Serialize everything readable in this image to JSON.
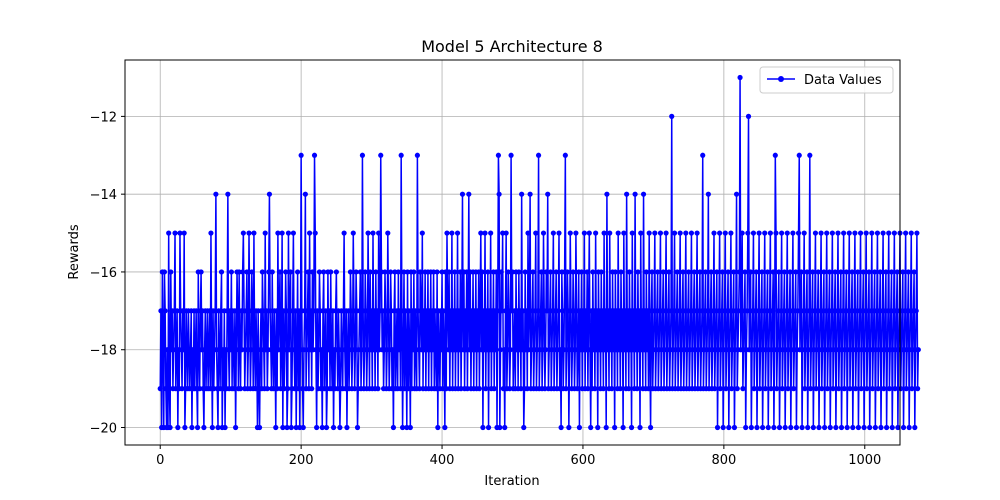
{
  "chart_data": {
    "type": "line",
    "title": "Model 5 Architecture 8",
    "xlabel": "Iteration",
    "ylabel": "Rewards",
    "xlim": [
      -50,
      1050
    ],
    "ylim": [
      -20.45,
      -10.55
    ],
    "xticks": [
      0,
      200,
      400,
      600,
      800,
      1000
    ],
    "xtick_labels": [
      "0",
      "200",
      "400",
      "600",
      "800",
      "1000"
    ],
    "yticks": [
      -20,
      -18,
      -16,
      -14,
      -12
    ],
    "ytick_labels": [
      "−20",
      "−18",
      "−16",
      "−14",
      "−12"
    ],
    "grid": true,
    "legend_position": "top-right",
    "series": [
      {
        "name": "Data Values",
        "color": "#0000ff",
        "marker": "circle",
        "x_start": 0,
        "x_step": 1,
        "values": [
          -19,
          -17,
          -20,
          -16,
          -18,
          -20,
          -16,
          -17,
          -19,
          -20,
          -18,
          -20,
          -15,
          -19,
          -20,
          -16,
          -18,
          -17,
          -19,
          -18,
          -17,
          -15,
          -19,
          -18,
          -17,
          -20,
          -18,
          -19,
          -15,
          -17,
          -18,
          -19,
          -17,
          -18,
          -15,
          -20,
          -19,
          -17,
          -18,
          -19,
          -17,
          -18,
          -19,
          -18,
          -17,
          -20,
          -18,
          -19,
          -17,
          -19,
          -18,
          -17,
          -19,
          -20,
          -16,
          -18,
          -19,
          -17,
          -16,
          -18,
          -17,
          -19,
          -20,
          -18,
          -17,
          -19,
          -18,
          -17,
          -19,
          -18,
          -17,
          -19,
          -15,
          -18,
          -20,
          -17,
          -19,
          -18,
          -17,
          -14,
          -18,
          -19,
          -20,
          -17,
          -18,
          -19,
          -17,
          -16,
          -20,
          -18,
          -19,
          -17,
          -20,
          -18,
          -19,
          -17,
          -14,
          -18,
          -19,
          -17,
          -18,
          -16,
          -19,
          -17,
          -18,
          -19,
          -17,
          -20,
          -18,
          -16,
          -17,
          -19,
          -16,
          -18,
          -19,
          -17,
          -18,
          -16,
          -15,
          -17,
          -19,
          -18,
          -17,
          -16,
          -19,
          -18,
          -15,
          -17,
          -19,
          -18,
          -16,
          -17,
          -19,
          -15,
          -18,
          -19,
          -17,
          -18,
          -20,
          -17,
          -19,
          -20,
          -18,
          -17,
          -19,
          -16,
          -17,
          -18,
          -19,
          -15,
          -18,
          -17,
          -19,
          -18,
          -16,
          -14,
          -17,
          -18,
          -19,
          -16,
          -18,
          -19,
          -17,
          -18,
          -20,
          -17,
          -19,
          -15,
          -18,
          -17,
          -16,
          -19,
          -18,
          -15,
          -20,
          -17,
          -19,
          -18,
          -16,
          -17,
          -20,
          -19,
          -15,
          -18,
          -17,
          -16,
          -20,
          -19,
          -17,
          -15,
          -18,
          -19,
          -17,
          -20,
          -18,
          -16,
          -19,
          -17,
          -20,
          -18,
          -13,
          -17,
          -19,
          -20,
          -18,
          -17,
          -14,
          -19,
          -18,
          -17,
          -16,
          -19,
          -15,
          -18,
          -17,
          -19,
          -16,
          -18,
          -17,
          -19,
          -15,
          -18,
          -20,
          -17,
          -19,
          -18,
          -16,
          -17,
          -19,
          -18,
          -20,
          -17,
          -16,
          -19,
          -18,
          -17,
          -20,
          -19,
          -16,
          -18,
          -17,
          -19,
          -16,
          -18,
          -19,
          -17,
          -20,
          -18,
          -19,
          -17,
          -16,
          -18,
          -19,
          -17,
          -18,
          -20,
          -19,
          -17,
          -18,
          -19,
          -17,
          -15,
          -18,
          -19,
          -17,
          -20,
          -18,
          -17,
          -19,
          -18,
          -16,
          -17,
          -19,
          -18,
          -15,
          -17,
          -19,
          -18,
          -16,
          -17,
          -20,
          -19,
          -18,
          -17,
          -16,
          -19,
          -18,
          -13,
          -17,
          -19,
          -18,
          -16,
          -17,
          -19,
          -18,
          -15,
          -17,
          -19,
          -16,
          -18,
          -17,
          -19,
          -15,
          -18,
          -17,
          -19,
          -16,
          -18,
          -17,
          -19,
          -15,
          -18,
          -17,
          -19,
          -16,
          -18,
          -17,
          -19,
          -18,
          -16,
          -17,
          -19,
          -18,
          -15,
          -17,
          -19,
          -18,
          -16,
          -17,
          -19,
          -18,
          -20,
          -17,
          -16,
          -19,
          -18,
          -17,
          -19,
          -16,
          -18,
          -17,
          -19,
          -13,
          -17,
          -20,
          -18,
          -16,
          -19,
          -17,
          -18,
          -20,
          -16,
          -19,
          -17,
          -18,
          -20,
          -16,
          -19,
          -17,
          -18,
          -16,
          -19,
          -17,
          -18,
          -19,
          -16,
          -17,
          -18,
          -19,
          -16,
          -17,
          -18,
          -15,
          -19,
          -17,
          -18,
          -16,
          -19,
          -17,
          -18,
          -16,
          -19,
          -17,
          -18,
          -16,
          -19,
          -17,
          -18,
          -16,
          -19,
          -17,
          -18,
          -19,
          -16,
          -20,
          -17,
          -18,
          -19,
          -17,
          -18,
          -16,
          -19,
          -17,
          -18,
          -20,
          -16,
          -19,
          -15,
          -17,
          -18,
          -16,
          -19,
          -17,
          -18,
          -15,
          -19,
          -17,
          -18,
          -16,
          -19,
          -17,
          -18,
          -15,
          -19,
          -17,
          -18,
          -16,
          -19,
          -17,
          -14,
          -18,
          -16,
          -19,
          -17,
          -18,
          -16,
          -19,
          -17,
          -14,
          -18,
          -16,
          -19,
          -17,
          -18,
          -16,
          -19,
          -17,
          -18,
          -16,
          -19,
          -17,
          -18,
          -16,
          -19,
          -17,
          -15,
          -18,
          -16,
          -20,
          -17,
          -18,
          -15,
          -19,
          -17,
          -18,
          -16,
          -20,
          -17,
          -18,
          -15,
          -19,
          -17,
          -18,
          -16,
          -19,
          -17,
          -18,
          -16,
          -20,
          -17,
          -13,
          -14,
          -20,
          -18,
          -16,
          -17,
          -15,
          -19,
          -18,
          -20,
          -17,
          -15,
          -19,
          -18,
          -16,
          -17,
          -19,
          -18,
          -20,
          -17,
          -16,
          -19,
          -18,
          -17,
          -19,
          -16,
          -18,
          -17,
          -19,
          -16,
          -18,
          -17,
          -19,
          -14,
          -18,
          -17,
          -20,
          -19,
          -16,
          -18,
          -17,
          -19,
          -15,
          -18,
          -17,
          -14,
          -19,
          -18,
          -17,
          -16,
          -19,
          -18,
          -17,
          -15,
          -19,
          -18,
          -17,
          -13,
          -19,
          -18,
          -17,
          -16,
          -19,
          -18,
          -15,
          -17,
          -19,
          -18,
          -16,
          -17,
          -14,
          -19,
          -18,
          -17,
          -16,
          -19,
          -18,
          -17,
          -15,
          -19,
          -18,
          -17,
          -16,
          -19,
          -18,
          -17,
          -15,
          -19,
          -18,
          -20,
          -16,
          -17,
          -19,
          -18,
          -16,
          -17,
          -19,
          -18,
          -16,
          -17,
          -20,
          -18,
          -15,
          -17,
          -19,
          -18,
          -16,
          -17,
          -19,
          -18,
          -15,
          -17,
          -19,
          -18,
          -16,
          -20,
          -17,
          -18,
          -16,
          -19,
          -17,
          -18,
          -15,
          -19,
          -17,
          -18,
          -16,
          -19,
          -17,
          -15,
          -18,
          -20,
          -17,
          -19,
          -16,
          -18,
          -17,
          -19,
          -15,
          -18,
          -17,
          -20,
          -16,
          -18,
          -17,
          -19,
          -16,
          -18,
          -17,
          -19,
          -15,
          -18,
          -17,
          -20,
          -14,
          -18,
          -17,
          -19,
          -15,
          -18,
          -17,
          -19,
          -16,
          -18,
          -17,
          -20,
          -16,
          -18,
          -17,
          -19,
          -15,
          -18,
          -17,
          -19,
          -16,
          -18,
          -17,
          -20,
          -15,
          -18,
          -17,
          -19,
          -14,
          -18,
          -17,
          -19,
          -16,
          -18,
          -17,
          -20,
          -15,
          -18,
          -17,
          -19,
          -14,
          -18,
          -17,
          -19,
          -16,
          -18,
          -17,
          -20,
          -15,
          -18,
          -17,
          -19,
          -14,
          -18,
          -17,
          -19,
          -16,
          -18,
          -17,
          -19,
          -15,
          -18,
          -20,
          -17,
          -16,
          -19,
          -18,
          -17,
          -15,
          -19,
          -18,
          -17,
          -16,
          -19,
          -18,
          -17,
          -15,
          -19,
          -18,
          -17,
          -16,
          -19,
          -18,
          -17,
          -15,
          -19,
          -18,
          -17,
          -16,
          -19,
          -18,
          -17,
          -12,
          -19,
          -18,
          -17,
          -15,
          -19,
          -18,
          -17,
          -16,
          -19,
          -18,
          -17,
          -15,
          -19,
          -18,
          -17,
          -16,
          -19,
          -18,
          -17,
          -15,
          -19,
          -18,
          -17,
          -16,
          -19,
          -18,
          -17,
          -15,
          -19,
          -18,
          -17,
          -16,
          -19,
          -18,
          -17,
          -15,
          -19,
          -18,
          -17,
          -16,
          -19,
          -18,
          -17,
          -13,
          -19,
          -18,
          -17,
          -16,
          -19,
          -18,
          -17,
          -14,
          -19,
          -18,
          -17,
          -16,
          -19,
          -18,
          -17,
          -15,
          -19,
          -18,
          -17,
          -16,
          -20,
          -18,
          -17,
          -15,
          -19,
          -18,
          -17,
          -16,
          -20,
          -18,
          -17,
          -15,
          -19,
          -18,
          -17,
          -16,
          -20,
          -18,
          -17,
          -15,
          -19,
          -18,
          -17,
          -16,
          -20,
          -18,
          -17,
          -14,
          -19,
          -18,
          -17,
          -16,
          -20,
          -18,
          -17,
          -15,
          -19,
          -18,
          -17,
          -16,
          -20,
          -18,
          -17,
          -15,
          -19,
          -18,
          -17,
          -16,
          -20,
          -18,
          -17,
          -15,
          -19,
          -18,
          -17,
          -16,
          -20,
          -18,
          -17,
          -15,
          -19,
          -18,
          -17,
          -16,
          -20,
          -18,
          -17,
          -15,
          -19,
          -18,
          -17,
          -16,
          -20,
          -18,
          -17,
          -15,
          -19,
          -18,
          -17,
          -16,
          -20,
          -18,
          -17,
          -15,
          -19,
          -18,
          -17,
          -16,
          -20,
          -18,
          -17,
          -15,
          -19,
          -18,
          -17,
          -16,
          -20,
          -18,
          -17,
          -15,
          -19,
          -18,
          -17,
          -16,
          -20,
          -18,
          -17,
          -15,
          -19,
          -18,
          -17,
          -16,
          -20,
          -18,
          -17,
          -15,
          -19,
          -18,
          -17,
          -16,
          -20,
          -18,
          -17,
          -15,
          -19,
          -18,
          -17,
          -16,
          -20,
          -18,
          -17,
          -15,
          -19,
          -18,
          -17,
          -16,
          -20,
          -18,
          -17,
          -15,
          -19,
          -18,
          -17,
          -16,
          -20,
          -18,
          -17,
          -15,
          -19,
          -18,
          -17,
          -16,
          -20,
          -18,
          -17,
          -15,
          -19,
          -18,
          -17,
          -16,
          -20,
          -18,
          -17,
          -15,
          -19,
          -18,
          -17,
          -16,
          -20,
          -18,
          -17,
          -15,
          -19,
          -18,
          -17,
          -16,
          -20,
          -18,
          -17,
          -15,
          -19,
          -18,
          -17,
          -16,
          -20,
          -18,
          -17,
          -15,
          -19,
          -18,
          -17,
          -16,
          -20,
          -18,
          -17,
          -15,
          -19,
          -18,
          -17,
          -16,
          -20,
          -18,
          -17,
          -15,
          -19,
          -18,
          -17,
          -16,
          -20,
          -18,
          -17,
          -15,
          -19,
          -18,
          -17,
          -16,
          -20,
          -18,
          -17,
          -15,
          -19,
          -18,
          -17,
          -16,
          -20,
          -18,
          -17,
          -15,
          -19,
          -18,
          -17,
          -16,
          -20,
          -18,
          -17,
          -15,
          -19,
          -18,
          -17,
          -16,
          -20,
          -18,
          -17,
          -15,
          -19,
          -18,
          -17,
          -16,
          -20,
          -18,
          -17,
          -15,
          -19,
          -18,
          -17,
          -16,
          -20,
          -18,
          -17,
          -15,
          -19,
          -18,
          -17,
          -16,
          -20,
          -18,
          -17,
          -15,
          -19,
          -18,
          -17,
          -16,
          -20,
          -18,
          -17,
          -15,
          -19,
          -18,
          -17,
          -16,
          -20,
          -18,
          -17,
          -15,
          -19,
          -18
        ]
      }
    ],
    "highlights": [
      {
        "x": 219,
        "y": -13
      },
      {
        "x": 313,
        "y": -13
      },
      {
        "x": 365,
        "y": -13
      },
      {
        "x": 498,
        "y": -13
      },
      {
        "x": 575,
        "y": -13
      },
      {
        "x": 823,
        "y": -11
      },
      {
        "x": 835,
        "y": -12
      },
      {
        "x": 873,
        "y": -13
      },
      {
        "x": 907,
        "y": -13
      },
      {
        "x": 922,
        "y": -13
      }
    ]
  }
}
